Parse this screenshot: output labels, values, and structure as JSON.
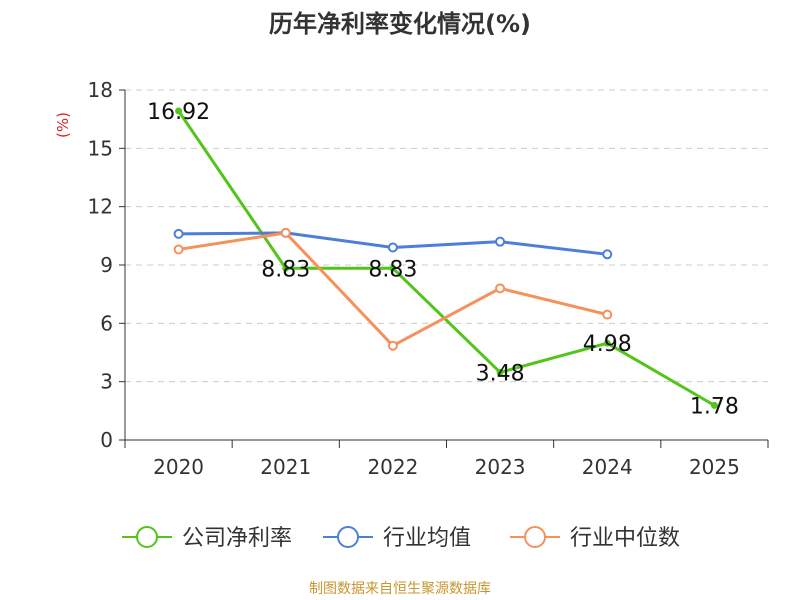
{
  "chart_data": {
    "type": "line",
    "title": "历年净利率变化情况(%)",
    "ylabel": "(%)",
    "xlabel": "",
    "ylim": [
      0,
      18
    ],
    "yticks": [
      0,
      3,
      6,
      9,
      12,
      15,
      18
    ],
    "categories": [
      "2020",
      "2021",
      "2022",
      "2023",
      "2024",
      "2025"
    ],
    "grid": true,
    "legend_position": "bottom",
    "series": [
      {
        "name": "公司净利率",
        "color": "#52c41a",
        "values": [
          16.92,
          8.83,
          8.83,
          3.48,
          4.98,
          1.78
        ],
        "labels": [
          "16.92",
          "8.83",
          "8.83",
          "3.48",
          "4.98",
          "1.78"
        ]
      },
      {
        "name": "行业均值",
        "color": "#4e7fd8",
        "values": [
          10.6,
          10.65,
          9.9,
          10.2,
          9.55,
          null
        ]
      },
      {
        "name": "行业中位数",
        "color": "#f5915a",
        "values": [
          9.8,
          10.65,
          4.85,
          7.8,
          6.45,
          null
        ]
      }
    ]
  },
  "footer": "制图数据来自恒生聚源数据库"
}
